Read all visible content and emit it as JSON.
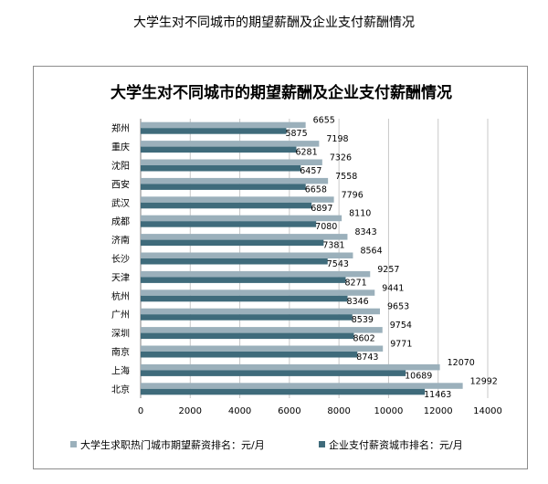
{
  "page_title": "大学生对不同城市的期望薪酬及企业支付薪酬情况",
  "chart_data": {
    "type": "bar",
    "orientation": "horizontal",
    "title": "大学生对不同城市的期望薪酬及企业支付薪酬情况",
    "categories": [
      "郑州",
      "重庆",
      "沈阳",
      "西安",
      "武汉",
      "成都",
      "济南",
      "长沙",
      "天津",
      "杭州",
      "广州",
      "深圳",
      "南京",
      "上海",
      "北京"
    ],
    "series": [
      {
        "name": "大学生求职热门城市期望薪资排名：元/月",
        "color": "#9bb0bb",
        "values": [
          6655,
          7198,
          7326,
          7558,
          7796,
          8110,
          8343,
          8564,
          9257,
          9441,
          9653,
          9754,
          9771,
          12070,
          12992
        ]
      },
      {
        "name": "企业支付薪资城市排名：元/月",
        "color": "#3f6b7b",
        "values": [
          5875,
          6281,
          6457,
          6658,
          6897,
          7080,
          7381,
          7543,
          8271,
          8346,
          8539,
          8602,
          8743,
          10689,
          11463
        ]
      }
    ],
    "xlim": [
      0,
      14000
    ],
    "xticks": [
      "0",
      "2000",
      "4000",
      "6000",
      "8000",
      "10000",
      "12000",
      "14000"
    ],
    "grid": true,
    "legend_position": "bottom"
  }
}
